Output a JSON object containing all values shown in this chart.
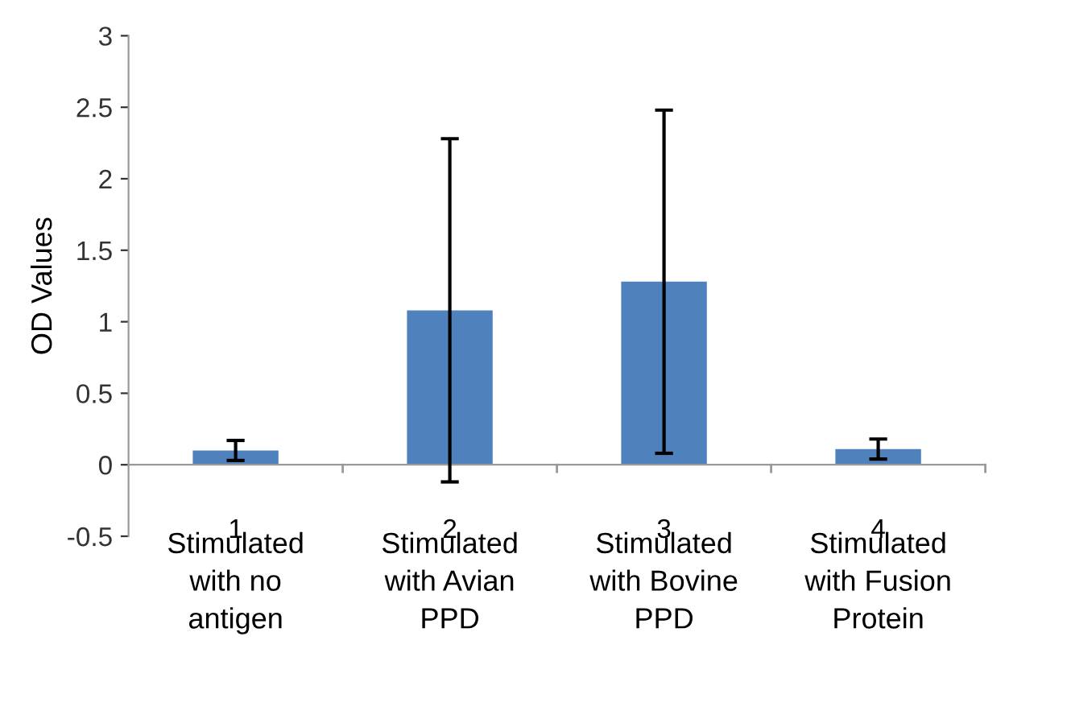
{
  "chart_data": {
    "type": "bar",
    "ylabel": "OD Values",
    "categories": [
      "1",
      "2",
      "3",
      "4"
    ],
    "values": [
      0.1,
      1.08,
      1.28,
      0.11
    ],
    "errors": [
      0.07,
      1.2,
      1.2,
      0.07
    ],
    "color": "#4f81bd",
    "ylim": [
      -0.5,
      3
    ],
    "yticks": [
      -0.5,
      0,
      0.5,
      1,
      1.5,
      2,
      2.5,
      3
    ],
    "legend": false,
    "annotations": [
      "Stimulated\nwith no\nantigen",
      "Stimulated\nwith Avian\nPPD",
      "Stimulated\nwith Bovine\nPPD",
      "Stimulated\nwith Fusion\nProtein"
    ]
  }
}
